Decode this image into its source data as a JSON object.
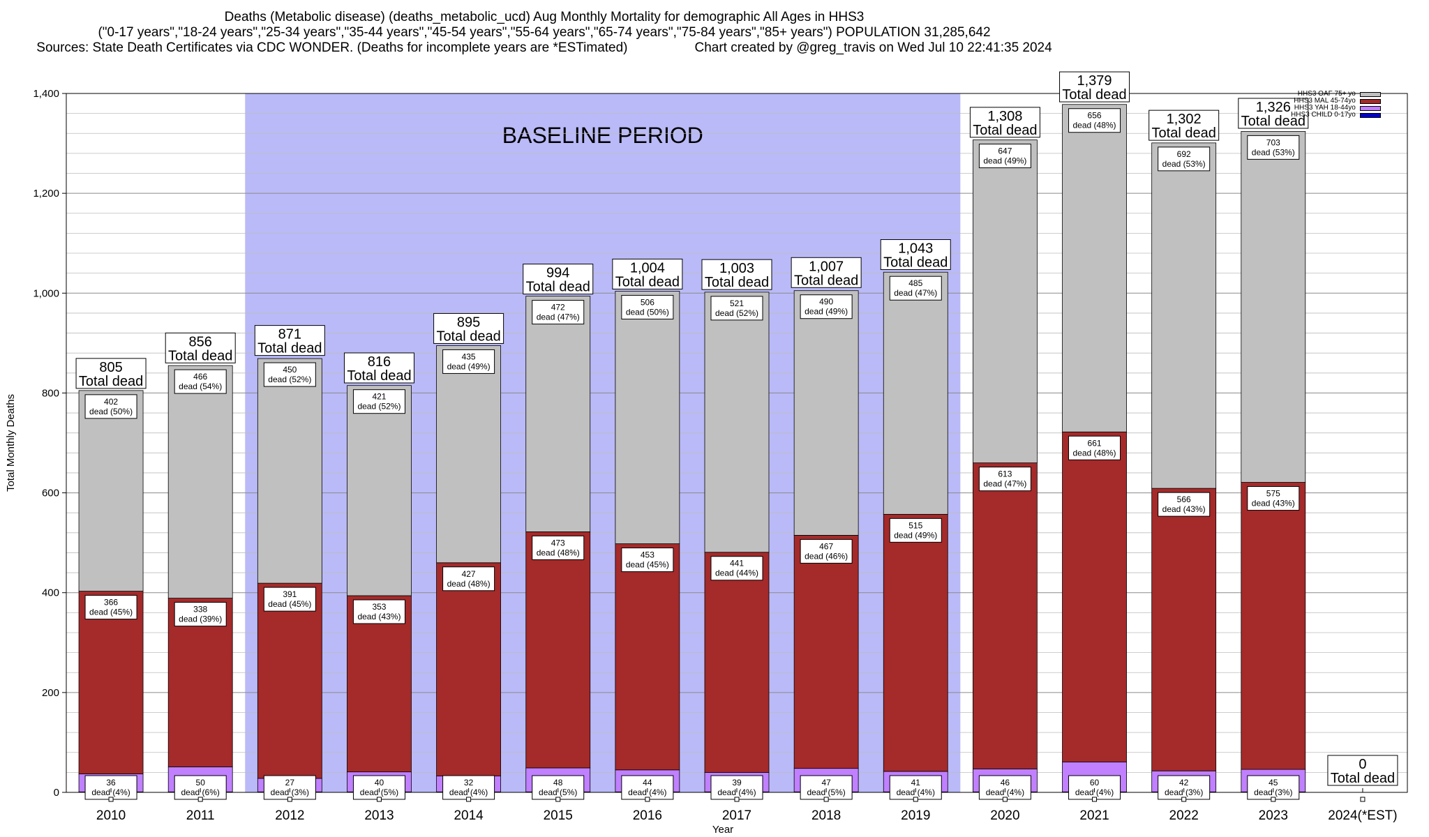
{
  "header": {
    "title_line1": "Deaths (Metabolic disease) (deaths_metabolic_ucd) Aug Monthly Mortality for demographic All Ages in HHS3",
    "title_line2": "(\"0-17 years\",\"18-24 years\",\"25-34 years\",\"35-44 years\",\"45-54 years\",\"55-64 years\",\"65-74 years\",\"75-84 years\",\"85+ years\") POPULATION 31,285,642",
    "sources": "Sources: State Death Certificates via CDC WONDER. (Deaths for incomplete years are *ESTimated)",
    "credit": "Chart created by @greg_travis on Wed Jul 10 22:41:35 2024"
  },
  "chart_data": {
    "type": "bar",
    "stacked": true,
    "xlabel": "Year",
    "ylabel": "Total Monthly Deaths",
    "ylim": [
      0,
      1400
    ],
    "yticks": [
      0,
      200,
      400,
      600,
      800,
      1000,
      1200,
      1400
    ],
    "ytick_labels": [
      "0",
      "200",
      "400",
      "600",
      "800",
      "1,000",
      "1,200",
      "1,400"
    ],
    "grid": true,
    "legend_position": "top-right",
    "baseline_label": "BASELINE PERIOD",
    "baseline_range": [
      "2012",
      "2019"
    ],
    "categories": [
      "2010",
      "2011",
      "2012",
      "2013",
      "2014",
      "2015",
      "2016",
      "2017",
      "2018",
      "2019",
      "2020",
      "2021",
      "2022",
      "2023",
      "2024(*EST)"
    ],
    "series": [
      {
        "name": "HHS3 CHILD 0-17yo",
        "color": "#0000cc",
        "values": [
          1,
          1,
          1,
          1,
          1,
          1,
          1,
          1,
          1,
          1,
          1,
          1,
          1,
          1,
          0
        ],
        "labels": []
      },
      {
        "name": "HHS3 YAH 18-44yo",
        "color": "#c080ff",
        "values": [
          36,
          50,
          27,
          40,
          32,
          48,
          44,
          39,
          47,
          41,
          46,
          60,
          42,
          45,
          0
        ],
        "labels": [
          "36\ndead (4%)",
          "50\ndead (6%)",
          "27\ndead (3%)",
          "40\ndead (5%)",
          "32\ndead (4%)",
          "48\ndead (5%)",
          "44\ndead (4%)",
          "39\ndead (4%)",
          "47\ndead (5%)",
          "41\ndead (4%)",
          "46\ndead (4%)",
          "60\ndead (4%)",
          "42\ndead (3%)",
          "45\ndead (3%)",
          ""
        ]
      },
      {
        "name": "HHS3 MAL 45-74yo",
        "color": "#a52a2a",
        "values": [
          366,
          338,
          391,
          353,
          427,
          473,
          453,
          441,
          467,
          515,
          613,
          661,
          566,
          575,
          0
        ],
        "labels": [
          "366\ndead (45%)",
          "338\ndead (39%)",
          "391\ndead (45%)",
          "353\ndead (43%)",
          "427\ndead (48%)",
          "473\ndead (48%)",
          "453\ndead (45%)",
          "441\ndead (44%)",
          "467\ndead (46%)",
          "515\ndead (49%)",
          "613\ndead (47%)",
          "661\ndead (48%)",
          "566\ndead (43%)",
          "575\ndead (43%)",
          ""
        ]
      },
      {
        "name": "HHS3 OAF 75+ yo",
        "color": "#c0c0c0",
        "values": [
          402,
          466,
          450,
          421,
          435,
          472,
          506,
          521,
          490,
          485,
          647,
          656,
          692,
          703,
          0
        ],
        "labels": [
          "402\ndead (50%)",
          "466\ndead (54%)",
          "450\ndead (52%)",
          "421\ndead (52%)",
          "435\ndead (49%)",
          "472\ndead (47%)",
          "506\ndead (50%)",
          "521\ndead (52%)",
          "490\ndead (49%)",
          "485\ndead (47%)",
          "647\ndead (49%)",
          "656\ndead (48%)",
          "692\ndead (53%)",
          "703\ndead (53%)",
          ""
        ]
      }
    ],
    "totals": [
      805,
      856,
      871,
      816,
      895,
      994,
      1004,
      1003,
      1007,
      1043,
      1308,
      1379,
      1302,
      1326,
      0
    ],
    "total_labels": [
      "805",
      "856",
      "871",
      "816",
      "895",
      "994",
      "1,004",
      "1,003",
      "1,007",
      "1,043",
      "1,308",
      "1,379",
      "1,302",
      "1,326",
      "0"
    ],
    "total_suffix": "Total dead"
  }
}
